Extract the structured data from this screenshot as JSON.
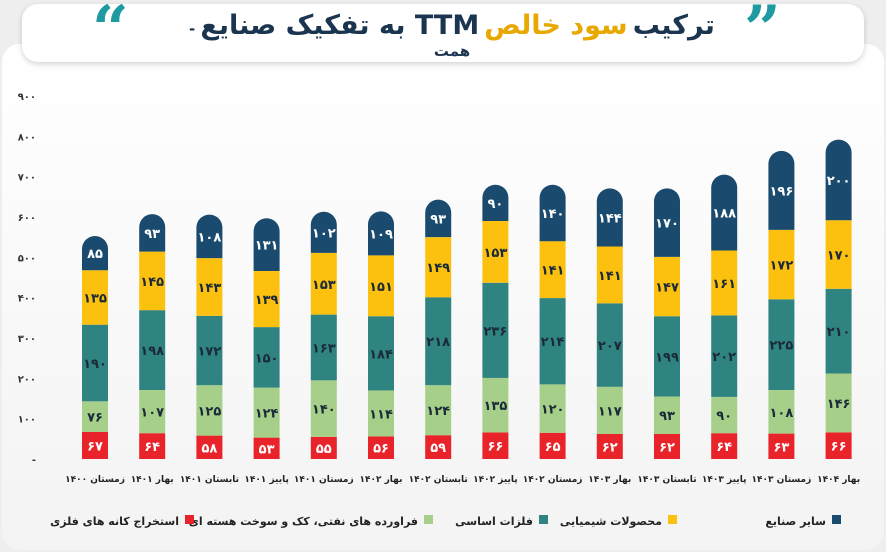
{
  "header": {
    "title_main": "ترکیب",
    "title_highlight": "سود خالص",
    "title_rest": "TTM به تفکیک صنایع",
    "title_suffix": "- همت"
  },
  "colors": {
    "mining": "#e8232a",
    "petroleum": "#a6d08a",
    "metals": "#2f8381",
    "chemicals": "#fcc10f",
    "other": "#1a4a6e"
  },
  "chart_data": {
    "type": "bar",
    "stacked": true,
    "categories": [
      "زمستان ۱۴۰۰",
      "بهار ۱۴۰۱",
      "تابستان ۱۴۰۱",
      "پاییز ۱۴۰۱",
      "زمستان ۱۴۰۱",
      "بهار ۱۴۰۲",
      "تابستان ۱۴۰۲",
      "پاییز ۱۴۰۲",
      "زمستان ۱۴۰۲",
      "بهار ۱۴۰۳",
      "تابستان ۱۴۰۳",
      "پاییز ۱۴۰۳",
      "زمستان ۱۴۰۳",
      "بهار ۱۴۰۴"
    ],
    "series": [
      {
        "name": "استخراج کانه های فلزی",
        "color": "#e8232a",
        "values": [
          67,
          64,
          58,
          53,
          55,
          56,
          59,
          66,
          65,
          62,
          62,
          64,
          63,
          66
        ],
        "labels": [
          "۶۷",
          "۶۴",
          "۵۸",
          "۵۳",
          "۵۵",
          "۵۶",
          "۵۹",
          "۶۶",
          "۶۵",
          "۶۲",
          "۶۲",
          "۶۴",
          "۶۳",
          "۶۶"
        ]
      },
      {
        "name": "فراورده های نفتی، کک و سوخت هسته ای",
        "color": "#a6d08a",
        "values": [
          76,
          107,
          125,
          124,
          140,
          114,
          124,
          135,
          120,
          117,
          93,
          90,
          108,
          146
        ],
        "labels": [
          "۷۶",
          "۱۰۷",
          "۱۲۵",
          "۱۲۴",
          "۱۴۰",
          "۱۱۴",
          "۱۲۴",
          "۱۳۵",
          "۱۲۰",
          "۱۱۷",
          "۹۳",
          "۹۰",
          "۱۰۸",
          "۱۴۶"
        ]
      },
      {
        "name": "فلزات اساسی",
        "color": "#2f8381",
        "values": [
          190,
          198,
          172,
          150,
          163,
          184,
          218,
          236,
          214,
          207,
          199,
          202,
          225,
          210
        ],
        "labels": [
          "۱۹۰",
          "۱۹۸",
          "۱۷۲",
          "۱۵۰",
          "۱۶۳",
          "۱۸۴",
          "۲۱۸",
          "۲۳۶",
          "۲۱۴",
          "۲۰۷",
          "۱۹۹",
          "۲۰۲",
          "۲۲۵",
          "۲۱۰"
        ]
      },
      {
        "name": "محصولات شیمیایی",
        "color": "#fcc10f",
        "values": [
          135,
          145,
          143,
          139,
          153,
          151,
          149,
          153,
          141,
          141,
          147,
          161,
          172,
          170
        ],
        "labels": [
          "۱۳۵",
          "۱۴۵",
          "۱۴۳",
          "۱۳۹",
          "۱۵۳",
          "۱۵۱",
          "۱۴۹",
          "۱۵۳",
          "۱۴۱",
          "۱۴۱",
          "۱۴۷",
          "۱۶۱",
          "۱۷۲",
          "۱۷۰"
        ]
      },
      {
        "name": "سایر صنایع",
        "color": "#1a4a6e",
        "values": [
          85,
          93,
          108,
          131,
          102,
          109,
          93,
          90,
          140,
          144,
          170,
          188,
          196,
          200
        ],
        "labels": [
          "۸۵",
          "۹۳",
          "۱۰۸",
          "۱۳۱",
          "۱۰۲",
          "۱۰۹",
          "۹۳",
          "۹۰",
          "۱۴۰",
          "۱۴۴",
          "۱۷۰",
          "۱۸۸",
          "۱۹۶",
          "۲۰۰"
        ]
      }
    ],
    "ylim": [
      0,
      900
    ],
    "yticks": [
      0,
      100,
      200,
      300,
      400,
      500,
      600,
      700,
      800,
      900
    ],
    "ytick_labels": [
      "-",
      "۱۰۰",
      "۲۰۰",
      "۳۰۰",
      "۴۰۰",
      "۵۰۰",
      "۶۰۰",
      "۷۰۰",
      "۸۰۰",
      "۹۰۰"
    ],
    "legend_position": "bottom",
    "grid": false
  }
}
